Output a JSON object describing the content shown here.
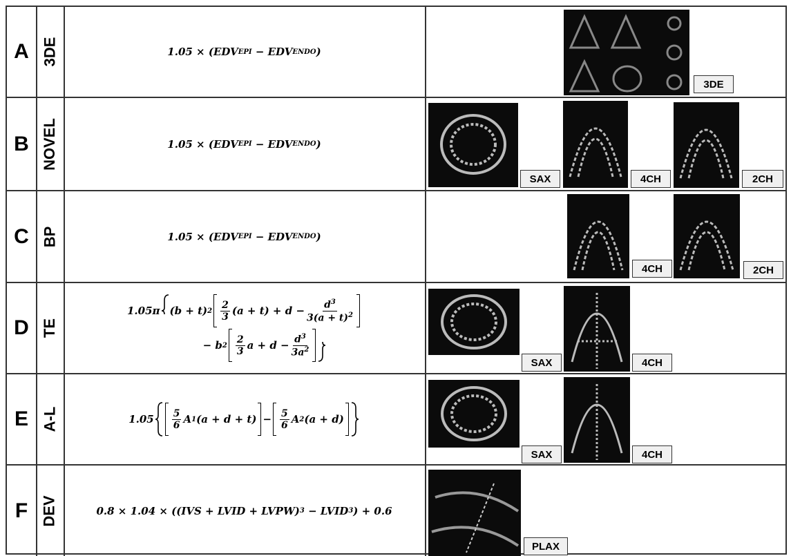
{
  "rows": [
    {
      "letter": "A",
      "method": "3DE",
      "formula": [
        "1.05 × (EDV",
        "EPI",
        " − EDV",
        "ENDO",
        ")"
      ],
      "images": [
        "3DE"
      ]
    },
    {
      "letter": "B",
      "method": "NOVEL",
      "formula": [
        "1.05 × (EDV",
        "EPI",
        " − EDV",
        "ENDO",
        ")"
      ],
      "images": [
        "SAX",
        "4CH",
        "2CH"
      ]
    },
    {
      "letter": "C",
      "method": "BP",
      "formula": [
        "1.05 × (EDV",
        "EPI",
        " − EDV",
        "ENDO",
        ")"
      ],
      "images": [
        "4CH",
        "2CH"
      ]
    },
    {
      "letter": "D",
      "method": "TE",
      "formula": [
        "1.05π",
        "(b + t)",
        "2",
        "2",
        "3",
        "(a + t) + d −",
        "d",
        "3",
        "3(a + t)",
        "2",
        "− b",
        "2",
        "2",
        "3",
        "a + d −",
        "d",
        "3",
        "3a",
        "2"
      ],
      "images": [
        "SAX",
        "4CH"
      ]
    },
    {
      "letter": "E",
      "method": "A-L",
      "formula": [
        "1.05",
        "5",
        "6",
        "A",
        "1",
        "(a + d + t)",
        "−",
        "5",
        "6",
        "A",
        "2",
        "(a + d)"
      ],
      "images": [
        "SAX",
        "4CH"
      ]
    },
    {
      "letter": "F",
      "method": "DEV",
      "formula": [
        "0.8 × 1.04 × ((IVS + LVID + LVPW)",
        "3",
        " − LVID",
        "3",
        ") + 0.6"
      ],
      "images": [
        "PLAX"
      ]
    }
  ]
}
